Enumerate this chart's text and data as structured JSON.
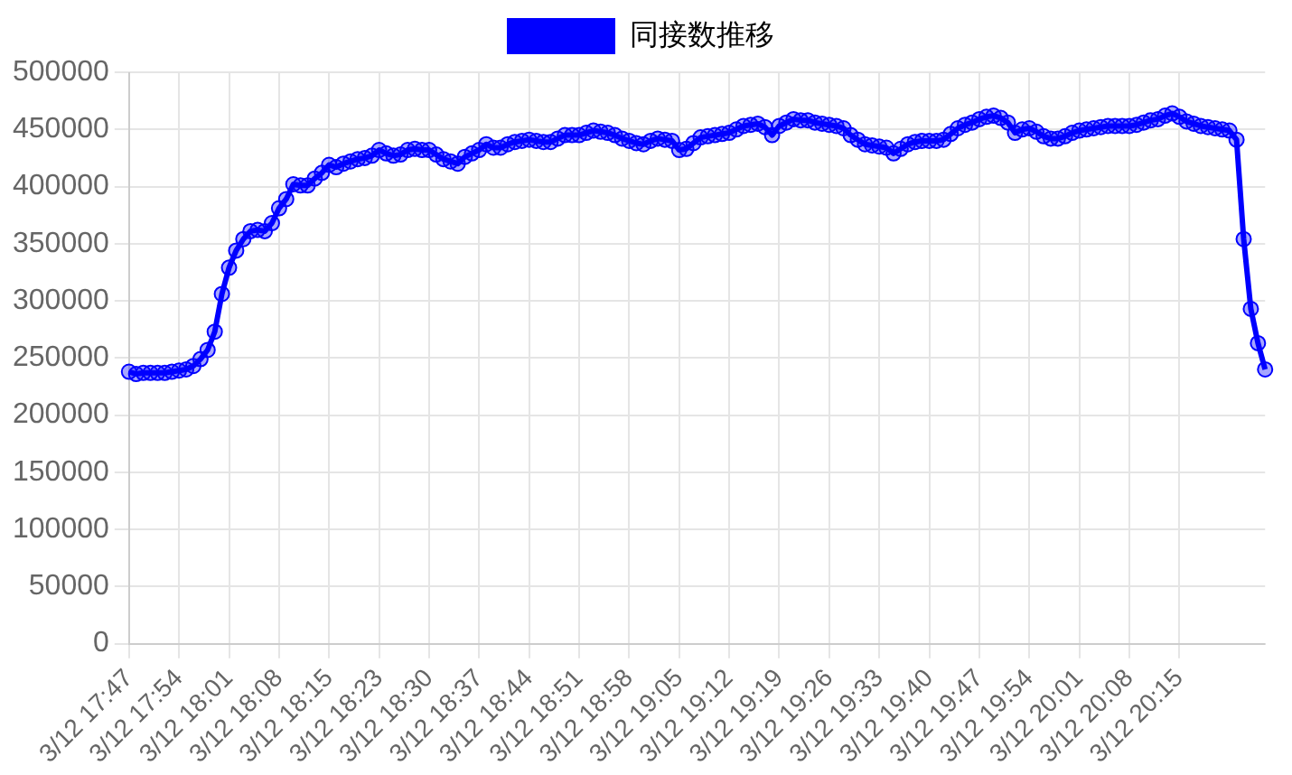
{
  "chart_data": {
    "type": "line",
    "categories": [
      "3/12 17:47",
      null,
      null,
      null,
      null,
      null,
      null,
      "3/12 17:54",
      null,
      null,
      null,
      null,
      null,
      null,
      "3/12 18:01",
      null,
      null,
      null,
      null,
      null,
      null,
      "3/12 18:08",
      null,
      null,
      null,
      null,
      null,
      null,
      "3/12 18:15",
      null,
      null,
      null,
      null,
      null,
      null,
      "3/12 18:23",
      null,
      null,
      null,
      null,
      null,
      null,
      "3/12 18:30",
      null,
      null,
      null,
      null,
      null,
      null,
      "3/12 18:37",
      null,
      null,
      null,
      null,
      null,
      null,
      "3/12 18:44",
      null,
      null,
      null,
      null,
      null,
      null,
      "3/12 18:51",
      null,
      null,
      null,
      null,
      null,
      null,
      "3/12 18:58",
      null,
      null,
      null,
      null,
      null,
      null,
      "3/12 19:05",
      null,
      null,
      null,
      null,
      null,
      null,
      "3/12 19:12",
      null,
      null,
      null,
      null,
      null,
      null,
      "3/12 19:19",
      null,
      null,
      null,
      null,
      null,
      null,
      "3/12 19:26",
      null,
      null,
      null,
      null,
      null,
      null,
      "3/12 19:33",
      null,
      null,
      null,
      null,
      null,
      null,
      "3/12 19:40",
      null,
      null,
      null,
      null,
      null,
      null,
      "3/12 19:47",
      null,
      null,
      null,
      null,
      null,
      null,
      "3/12 19:54",
      null,
      null,
      null,
      null,
      null,
      null,
      "3/12 20:01",
      null,
      null,
      null,
      null,
      null,
      null,
      "3/12 20:08",
      null,
      null,
      null,
      null,
      null,
      null,
      "3/12 20:15",
      null,
      null,
      null,
      null,
      null,
      null,
      null,
      null,
      null,
      null,
      null,
      null
    ],
    "series": [
      {
        "name": "同接数推移",
        "color": "#0000ff",
        "values": [
          238000,
          236000,
          237000,
          237000,
          237000,
          237000,
          238000,
          239000,
          240000,
          243000,
          249000,
          257000,
          273000,
          306000,
          329000,
          344000,
          354000,
          361000,
          362000,
          361000,
          368000,
          381000,
          389000,
          402000,
          401000,
          401000,
          407000,
          412000,
          419000,
          417000,
          420000,
          422000,
          424000,
          425000,
          427000,
          432000,
          429000,
          427000,
          428000,
          432000,
          433000,
          432000,
          432000,
          428000,
          424000,
          422000,
          420000,
          426000,
          429000,
          432000,
          437000,
          434000,
          434000,
          437000,
          439000,
          440000,
          441000,
          440000,
          439000,
          439000,
          442000,
          445000,
          445000,
          445000,
          447000,
          449000,
          448000,
          447000,
          445000,
          442000,
          440000,
          438000,
          437000,
          440000,
          442000,
          441000,
          440000,
          432000,
          433000,
          438000,
          443000,
          444000,
          445000,
          446000,
          447000,
          450000,
          453000,
          454000,
          455000,
          452000,
          445000,
          453000,
          456000,
          459000,
          458000,
          458000,
          456000,
          455000,
          454000,
          453000,
          451000,
          445000,
          441000,
          437000,
          436000,
          435000,
          434000,
          429000,
          433000,
          437000,
          439000,
          440000,
          440000,
          440000,
          441000,
          446000,
          451000,
          454000,
          456000,
          459000,
          461000,
          462000,
          460000,
          456000,
          447000,
          450000,
          451000,
          448000,
          444000,
          442000,
          442000,
          444000,
          447000,
          449000,
          450000,
          451000,
          452000,
          453000,
          453000,
          453000,
          453000,
          454000,
          456000,
          458000,
          459000,
          462000,
          464000,
          461000,
          457000,
          455000,
          453000,
          452000,
          451000,
          450000,
          449000,
          441000,
          354000,
          293000,
          263000,
          240000
        ]
      }
    ],
    "ylim": [
      0,
      500000
    ],
    "yticks": [
      0,
      50000,
      100000,
      150000,
      200000,
      250000,
      300000,
      350000,
      400000,
      450000,
      500000
    ],
    "grid": true,
    "legend": "top",
    "marker": "circle",
    "line_style": "solid"
  }
}
